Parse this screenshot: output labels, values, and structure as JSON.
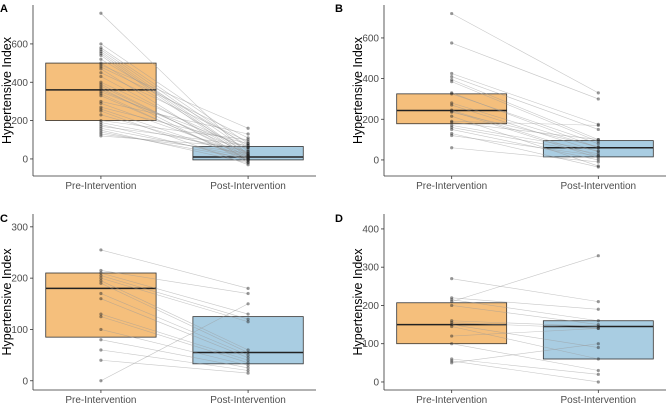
{
  "chart_data": [
    {
      "panel": "A",
      "type": "box-paired",
      "ylabel": "Hypertensive Index",
      "categories": [
        "Pre-Intervention",
        "Post-Intervention"
      ],
      "ylim": [
        -89,
        803
      ],
      "yticks": [
        0,
        200,
        400,
        600
      ],
      "boxes": [
        {
          "q1": 200,
          "median": 360,
          "q3": 500
        },
        {
          "q1": -5,
          "median": 10,
          "q3": 65
        }
      ],
      "pairs": [
        [
          760,
          20
        ],
        [
          600,
          80
        ],
        [
          580,
          60
        ],
        [
          570,
          40
        ],
        [
          560,
          20
        ],
        [
          550,
          10
        ],
        [
          540,
          0
        ],
        [
          520,
          70
        ],
        [
          500,
          30
        ],
        [
          490,
          160
        ],
        [
          480,
          110
        ],
        [
          470,
          -10
        ],
        [
          450,
          90
        ],
        [
          430,
          20
        ],
        [
          400,
          50
        ],
        [
          390,
          0
        ],
        [
          380,
          10
        ],
        [
          370,
          -20
        ],
        [
          360,
          30
        ],
        [
          350,
          60
        ],
        [
          340,
          -10
        ],
        [
          330,
          0
        ],
        [
          300,
          130
        ],
        [
          290,
          20
        ],
        [
          270,
          80
        ],
        [
          260,
          5
        ],
        [
          250,
          -30
        ],
        [
          230,
          15
        ],
        [
          200,
          100
        ],
        [
          190,
          40
        ],
        [
          180,
          -5
        ],
        [
          170,
          70
        ],
        [
          160,
          10
        ],
        [
          150,
          -20
        ],
        [
          140,
          0
        ],
        [
          130,
          30
        ],
        [
          120,
          60
        ]
      ]
    },
    {
      "panel": "B",
      "type": "box-paired",
      "ylabel": "Hypertensive Index",
      "categories": [
        "Pre-Intervention",
        "Post-Intervention"
      ],
      "ylim": [
        -79,
        762
      ],
      "yticks": [
        0,
        200,
        400,
        600
      ],
      "boxes": [
        {
          "q1": 178,
          "median": 243,
          "q3": 325
        },
        {
          "q1": 15,
          "median": 60,
          "q3": 95
        }
      ],
      "pairs": [
        [
          720,
          330
        ],
        [
          575,
          300
        ],
        [
          425,
          175
        ],
        [
          410,
          150
        ],
        [
          395,
          100
        ],
        [
          385,
          90
        ],
        [
          330,
          60
        ],
        [
          325,
          80
        ],
        [
          280,
          60
        ],
        [
          270,
          40
        ],
        [
          245,
          20
        ],
        [
          240,
          10
        ],
        [
          235,
          65
        ],
        [
          215,
          -30
        ],
        [
          190,
          170
        ],
        [
          185,
          100
        ],
        [
          170,
          45
        ],
        [
          160,
          30
        ],
        [
          150,
          0
        ],
        [
          130,
          -35
        ],
        [
          120,
          20
        ],
        [
          60,
          -10
        ]
      ]
    },
    {
      "panel": "C",
      "type": "box-paired",
      "ylabel": "Hypertensive Index",
      "categories": [
        "Pre-Intervention",
        "Post-Intervention"
      ],
      "ylim": [
        -18,
        325
      ],
      "yticks": [
        0,
        100,
        200,
        300
      ],
      "boxes": [
        {
          "q1": 85,
          "median": 180,
          "q3": 210
        },
        {
          "q1": 33,
          "median": 55,
          "q3": 125
        }
      ],
      "pairs": [
        [
          255,
          180
        ],
        [
          215,
          170
        ],
        [
          210,
          130
        ],
        [
          205,
          120
        ],
        [
          200,
          115
        ],
        [
          195,
          60
        ],
        [
          190,
          55
        ],
        [
          170,
          50
        ],
        [
          160,
          45
        ],
        [
          130,
          40
        ],
        [
          125,
          35
        ],
        [
          100,
          30
        ],
        [
          80,
          25
        ],
        [
          60,
          20
        ],
        [
          40,
          15
        ],
        [
          0,
          150
        ]
      ]
    },
    {
      "panel": "D",
      "type": "box-paired",
      "ylabel": "Hypertensive Index",
      "categories": [
        "Pre-Intervention",
        "Post-Intervention"
      ],
      "ylim": [
        -21,
        439
      ],
      "yticks": [
        0,
        100,
        200,
        300,
        400
      ],
      "boxes": [
        {
          "q1": 100,
          "median": 150,
          "q3": 207
        },
        {
          "q1": 60,
          "median": 145,
          "q3": 160
        }
      ],
      "pairs": [
        [
          270,
          210
        ],
        [
          220,
          190
        ],
        [
          215,
          160
        ],
        [
          210,
          330
        ],
        [
          200,
          150
        ],
        [
          160,
          145
        ],
        [
          155,
          140
        ],
        [
          150,
          90
        ],
        [
          145,
          60
        ],
        [
          120,
          140
        ],
        [
          100,
          30
        ],
        [
          60,
          20
        ],
        [
          55,
          0
        ],
        [
          50,
          100
        ]
      ]
    }
  ],
  "colors": {
    "pre": "#f5bf7c",
    "post": "#a9cde2",
    "line": "#999999",
    "point": "#222222"
  }
}
